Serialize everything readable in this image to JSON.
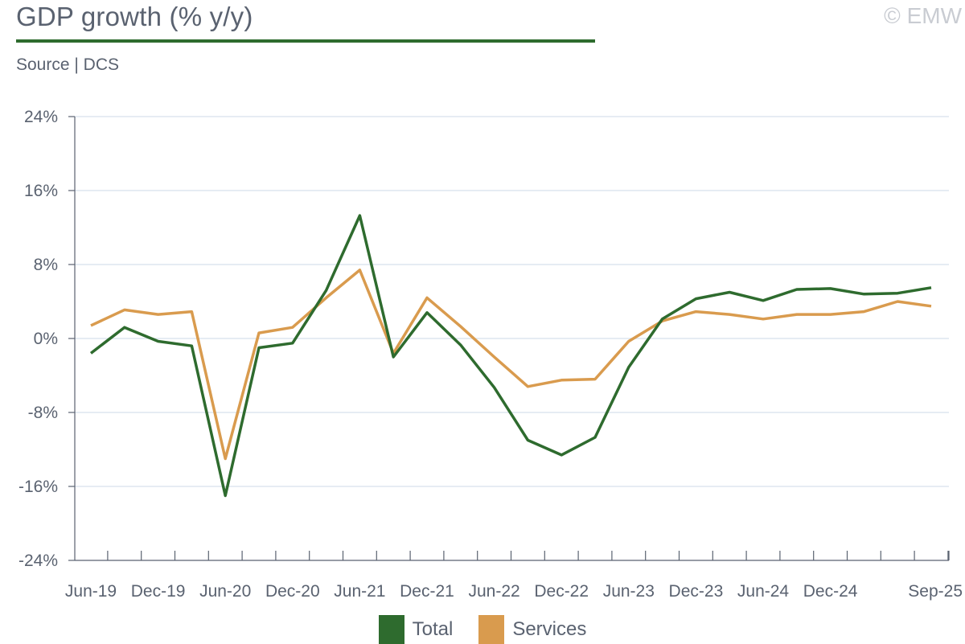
{
  "header": {
    "title": "GDP growth (% y/y)",
    "source": "Source | DCS",
    "copyright": "© EMW"
  },
  "colors": {
    "total": "#2e6b2e",
    "services": "#d99b4e",
    "grid": "#dde6ef",
    "axis": "#5a6270"
  },
  "chart_data": {
    "type": "line",
    "ylim": [
      -24,
      24
    ],
    "y_ticks": [
      24,
      16,
      8,
      0,
      -8,
      -16,
      -24
    ],
    "y_tick_labels": [
      "24%",
      "16%",
      "8%",
      "0%",
      "-8%",
      "-16%",
      "-24%"
    ],
    "x": [
      "Jun-19",
      "Sep-19",
      "Dec-19",
      "Mar-20",
      "Jun-20",
      "Sep-20",
      "Dec-20",
      "Mar-21",
      "Jun-21",
      "Sep-21",
      "Dec-21",
      "Mar-22",
      "Jun-22",
      "Sep-22",
      "Dec-22",
      "Mar-23",
      "Jun-23",
      "Sep-23",
      "Dec-23",
      "Mar-24",
      "Jun-24",
      "Sep-24",
      "Dec-24",
      "Mar-25",
      "Jun-25",
      "Sep-25"
    ],
    "x_tick_labels": [
      "Jun-19",
      "Dec-19",
      "Jun-20",
      "Dec-20",
      "Jun-21",
      "Dec-21",
      "Jun-22",
      "Dec-22",
      "Jun-23",
      "Dec-23",
      "Jun-24",
      "Dec-24",
      "Sep-25"
    ],
    "grid": true,
    "legend_position": "bottom-center",
    "series": [
      {
        "name": "Total",
        "values": [
          -1.6,
          1.2,
          -0.3,
          -0.8,
          -17.0,
          -1.0,
          -0.5,
          5.2,
          13.3,
          -2.0,
          2.8,
          -0.7,
          -5.3,
          -11.0,
          -12.6,
          -10.7,
          -3.1,
          2.1,
          4.3,
          5.0,
          4.1,
          5.3,
          5.4,
          4.8,
          4.9,
          5.5
        ]
      },
      {
        "name": "Services",
        "values": [
          1.4,
          3.1,
          2.6,
          2.9,
          -13.0,
          0.6,
          1.2,
          4.4,
          7.4,
          -1.6,
          4.4,
          1.3,
          -2.0,
          -5.2,
          -4.5,
          -4.4,
          -0.3,
          1.9,
          2.9,
          2.6,
          2.1,
          2.6,
          2.6,
          2.9,
          4.0,
          3.5
        ]
      }
    ]
  },
  "legend": {
    "total_label": "Total",
    "services_label": "Services"
  }
}
